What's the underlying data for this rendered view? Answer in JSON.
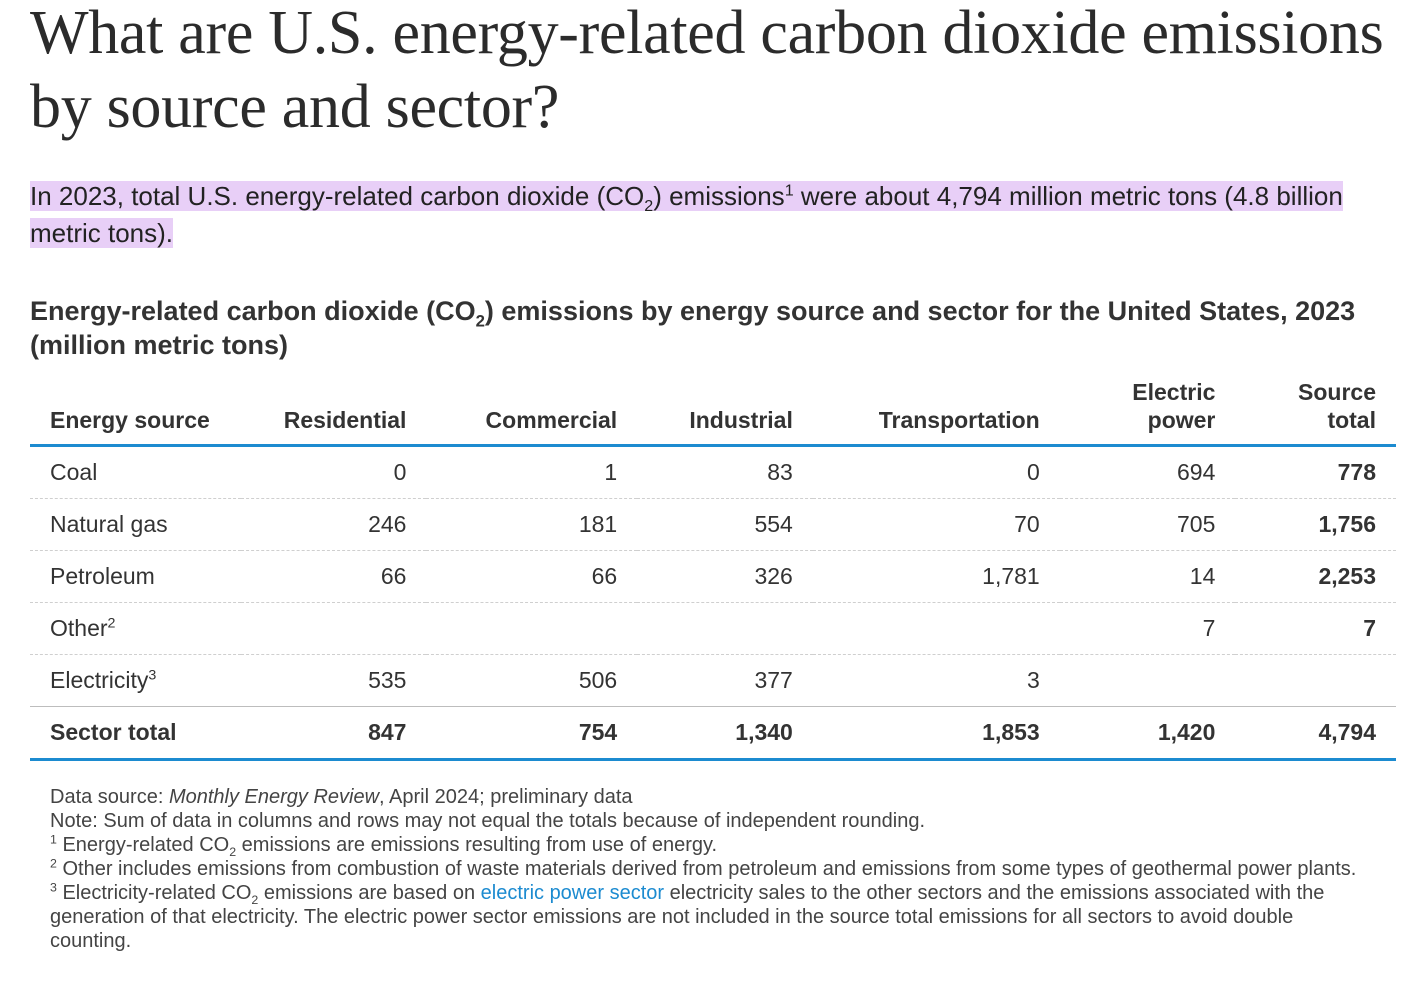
{
  "heading": "What are U.S. energy-related carbon dioxide emissions by source and sector?",
  "lead": {
    "p1": "In 2023, total U.S. energy-related carbon dioxide (CO",
    "sub": "2",
    "p2": ") emissions",
    "sup": "1",
    "p3": " were about 4,794 million metric tons (4.8 billion metric tons)."
  },
  "table_title": {
    "p1": "Energy-related carbon dioxide (CO",
    "sub": "2",
    "p2": ") emissions by energy source and sector for the United States, 2023 (million metric tons)"
  },
  "table": {
    "headers": [
      "Energy source",
      "Residential",
      "Commercial",
      "Industrial",
      "Transportation",
      "Electric power",
      "Source total"
    ],
    "rows": [
      {
        "label": "Coal",
        "sup": "",
        "values": [
          "0",
          "1",
          "83",
          "0",
          "694",
          "778"
        ]
      },
      {
        "label": "Natural gas",
        "sup": "",
        "values": [
          "246",
          "181",
          "554",
          "70",
          "705",
          "1,756"
        ]
      },
      {
        "label": "Petroleum",
        "sup": "",
        "values": [
          "66",
          "66",
          "326",
          "1,781",
          "14",
          "2,253"
        ]
      },
      {
        "label": "Other",
        "sup": "2",
        "values": [
          "",
          "",
          "",
          "",
          "7",
          "7"
        ]
      },
      {
        "label": "Electricity",
        "sup": "3",
        "values": [
          "535",
          "506",
          "377",
          "3",
          "",
          ""
        ]
      }
    ],
    "total": {
      "label": "Sector total",
      "values": [
        "847",
        "754",
        "1,340",
        "1,853",
        "1,420",
        "4,794"
      ]
    }
  },
  "notes": {
    "source_prefix": "Data source: ",
    "source_title": "Monthly Energy Review",
    "source_suffix": ", April 2024; preliminary data",
    "note": "Note: Sum of data in columns and rows may not equal the totals because of independent rounding.",
    "fn1_mark": "1",
    "fn1_a": " Energy-related CO",
    "fn1_sub": "2",
    "fn1_b": " emissions are emissions resulting from use of energy.",
    "fn2_mark": "2",
    "fn2": " Other includes emissions from combustion of waste materials derived from petroleum and emissions from some types of geothermal power plants.",
    "fn3_mark": "3",
    "fn3_a": " Electricity-related CO",
    "fn3_sub": "2",
    "fn3_b": " emissions are based on ",
    "fn3_link": "electric power sector",
    "fn3_c": " electricity sales to the other sectors and the emissions associated with the generation of that electricity. The electric power sector emissions are not included in the source total emissions for all sectors to avoid double counting."
  }
}
